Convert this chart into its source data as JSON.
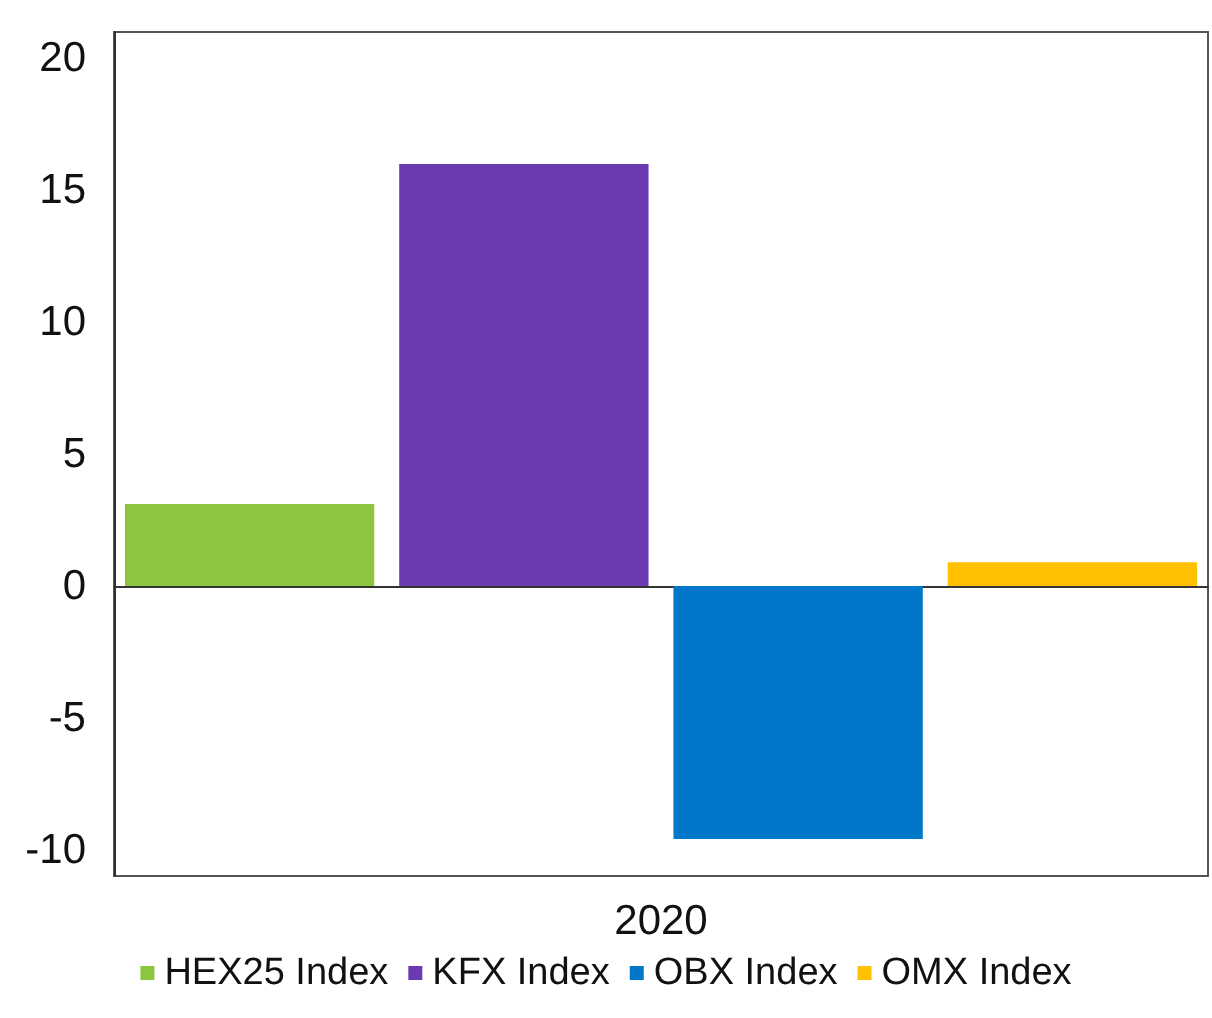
{
  "chart_data": {
    "type": "bar",
    "categories": [
      "2020"
    ],
    "series": [
      {
        "name": "HEX25 Index",
        "color": "#8cc63f",
        "values": [
          3.1
        ]
      },
      {
        "name": "KFX Index",
        "color": "#6a3ab2",
        "values": [
          16.0
        ]
      },
      {
        "name": "OBX Index",
        "color": "#0077c8",
        "values": [
          -9.6
        ]
      },
      {
        "name": "OMX Index",
        "color": "#ffc000",
        "values": [
          0.9
        ]
      }
    ],
    "ylim": [
      -11,
      21
    ],
    "yticks": [
      -10,
      -5,
      0,
      5,
      10,
      15,
      20
    ],
    "legend": "bottom"
  }
}
